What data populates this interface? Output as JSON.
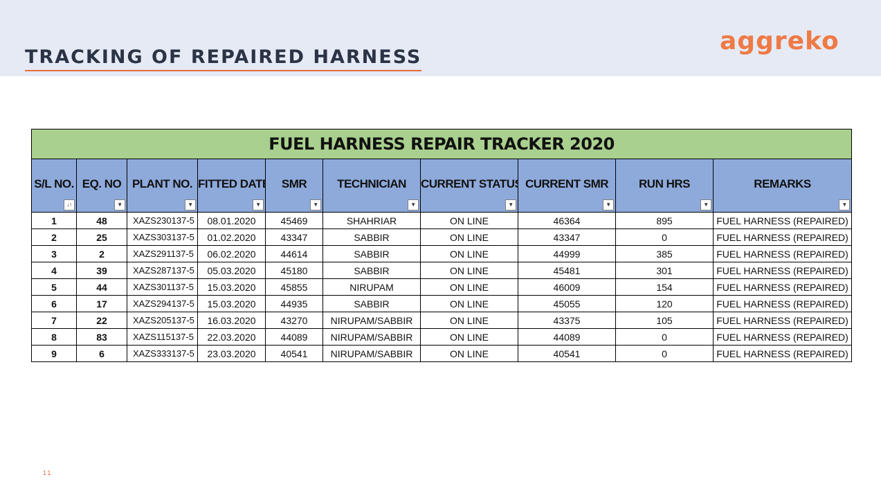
{
  "page": {
    "title": "TRACKING OF REPAIRED HARNESS",
    "logo": "aggreko",
    "page_number": "11"
  },
  "colors": {
    "header_band": "#e6eaf5",
    "title_row": "#a9d08e",
    "header_row": "#8eaadb",
    "logo": "#ee7a45"
  },
  "table": {
    "title": "FUEL  HARNESS REPAIR TRACKER 2020",
    "columns": [
      "S/L NO.",
      "EQ. NO",
      "PLANT NO.",
      "FITTED DATE",
      "SMR",
      "TECHNICIAN",
      "CURRENT STATUS",
      "CURRENT SMR",
      "RUN HRS",
      "REMARKS"
    ],
    "filter_icons": [
      "sort-filter-icon",
      "dropdown-filter-icon"
    ],
    "rows": [
      [
        "1",
        "48",
        "XAZS230137-5",
        "08.01.2020",
        "45469",
        "SHAHRIAR",
        "ON LINE",
        "46364",
        "895",
        "FUEL HARNESS (REPAIRED)"
      ],
      [
        "2",
        "25",
        "XAZS303137-5",
        "01.02.2020",
        "43347",
        "SABBIR",
        "ON LINE",
        "43347",
        "0",
        "FUEL HARNESS (REPAIRED)"
      ],
      [
        "3",
        "2",
        "XAZS291137-5",
        "06.02.2020",
        "44614",
        "SABBIR",
        "ON LINE",
        "44999",
        "385",
        "FUEL HARNESS (REPAIRED)"
      ],
      [
        "4",
        "39",
        "XAZS287137-5",
        "05.03.2020",
        "45180",
        "SABBIR",
        "ON LINE",
        "45481",
        "301",
        "FUEL HARNESS (REPAIRED)"
      ],
      [
        "5",
        "44",
        "XAZS301137-5",
        "15.03.2020",
        "45855",
        "NIRUPAM",
        "ON LINE",
        "46009",
        "154",
        "FUEL HARNESS (REPAIRED)"
      ],
      [
        "6",
        "17",
        "XAZS294137-5",
        "15.03.2020",
        "44935",
        "SABBIR",
        "ON LINE",
        "45055",
        "120",
        "FUEL HARNESS (REPAIRED)"
      ],
      [
        "7",
        "22",
        "XAZS205137-5",
        "16.03.2020",
        "43270",
        "NIRUPAM/SABBIR",
        "ON LINE",
        "43375",
        "105",
        "FUEL HARNESS (REPAIRED)"
      ],
      [
        "8",
        "83",
        "XAZS115137-5",
        "22.03.2020",
        "44089",
        "NIRUPAM/SABBIR",
        "ON LINE",
        "44089",
        "0",
        "FUEL HARNESS (REPAIRED)"
      ],
      [
        "9",
        "6",
        "XAZS333137-5",
        "23.03.2020",
        "40541",
        "NIRUPAM/SABBIR",
        "ON LINE",
        "40541",
        "0",
        "FUEL HARNESS (REPAIRED)"
      ]
    ]
  }
}
